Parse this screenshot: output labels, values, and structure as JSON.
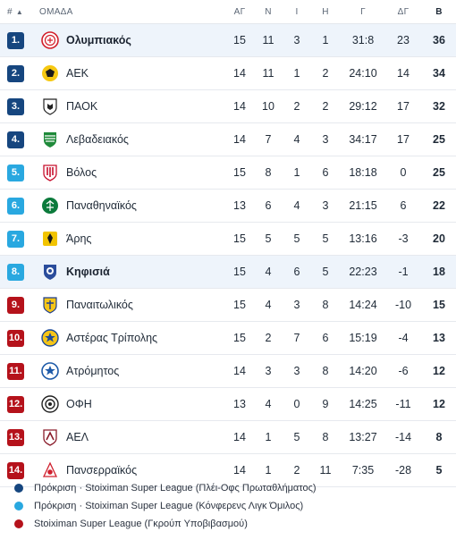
{
  "header": {
    "pos": "#",
    "team": "ΟΜΑΔΑ",
    "played": "ΑΓ",
    "wins": "Ν",
    "draws": "Ι",
    "losses": "Η",
    "goals": "Γ",
    "goal_diff": "ΔΓ",
    "points": "Β",
    "sort_icon": "sort-up-icon"
  },
  "colors": {
    "playoff": "#16467f",
    "conference": "#29a8e0",
    "relegation": "#b5121b",
    "highlight_row": "#eef4fb"
  },
  "rows": [
    {
      "pos": "1.",
      "team": "Ολυμπιακός",
      "played": "15",
      "wins": "11",
      "draws": "3",
      "losses": "1",
      "goals": "31:8",
      "gd": "23",
      "pts": "36",
      "zone": "playoff",
      "bold": true,
      "logo": "olympiakos-logo"
    },
    {
      "pos": "2.",
      "team": "ΑΕΚ",
      "played": "14",
      "wins": "11",
      "draws": "1",
      "losses": "2",
      "goals": "24:10",
      "gd": "14",
      "pts": "34",
      "zone": "playoff",
      "bold": false,
      "logo": "aek-logo"
    },
    {
      "pos": "3.",
      "team": "ΠΑΟΚ",
      "played": "14",
      "wins": "10",
      "draws": "2",
      "losses": "2",
      "goals": "29:12",
      "gd": "17",
      "pts": "32",
      "zone": "playoff",
      "bold": false,
      "logo": "paok-logo"
    },
    {
      "pos": "4.",
      "team": "Λεβαδειακός",
      "played": "14",
      "wins": "7",
      "draws": "4",
      "losses": "3",
      "goals": "34:17",
      "gd": "17",
      "pts": "25",
      "zone": "playoff",
      "bold": false,
      "logo": "levadiakos-logo"
    },
    {
      "pos": "5.",
      "team": "Βόλος",
      "played": "15",
      "wins": "8",
      "draws": "1",
      "losses": "6",
      "goals": "18:18",
      "gd": "0",
      "pts": "25",
      "zone": "conference",
      "bold": false,
      "logo": "volos-logo"
    },
    {
      "pos": "6.",
      "team": "Παναθηναϊκός",
      "played": "13",
      "wins": "6",
      "draws": "4",
      "losses": "3",
      "goals": "21:15",
      "gd": "6",
      "pts": "22",
      "zone": "conference",
      "bold": false,
      "logo": "panathinaikos-logo"
    },
    {
      "pos": "7.",
      "team": "Άρης",
      "played": "15",
      "wins": "5",
      "draws": "5",
      "losses": "5",
      "goals": "13:16",
      "gd": "-3",
      "pts": "20",
      "zone": "conference",
      "bold": false,
      "logo": "aris-logo"
    },
    {
      "pos": "8.",
      "team": "Κηφισιά",
      "played": "15",
      "wins": "4",
      "draws": "6",
      "losses": "5",
      "goals": "22:23",
      "gd": "-1",
      "pts": "18",
      "zone": "conference",
      "bold": true,
      "logo": "kifisia-logo"
    },
    {
      "pos": "9.",
      "team": "Παναιτωλικός",
      "played": "15",
      "wins": "4",
      "draws": "3",
      "losses": "8",
      "goals": "14:24",
      "gd": "-10",
      "pts": "15",
      "zone": "relegation",
      "bold": false,
      "logo": "panaitolikos-logo"
    },
    {
      "pos": "10.",
      "team": "Αστέρας Τρίπολης",
      "played": "15",
      "wins": "2",
      "draws": "7",
      "losses": "6",
      "goals": "15:19",
      "gd": "-4",
      "pts": "13",
      "zone": "relegation",
      "bold": false,
      "logo": "asteras-logo"
    },
    {
      "pos": "11.",
      "team": "Ατρόμητος",
      "played": "14",
      "wins": "3",
      "draws": "3",
      "losses": "8",
      "goals": "14:20",
      "gd": "-6",
      "pts": "12",
      "zone": "relegation",
      "bold": false,
      "logo": "atromitos-logo"
    },
    {
      "pos": "12.",
      "team": "ΟΦΗ",
      "played": "13",
      "wins": "4",
      "draws": "0",
      "losses": "9",
      "goals": "14:25",
      "gd": "-11",
      "pts": "12",
      "zone": "relegation",
      "bold": false,
      "logo": "ofi-logo"
    },
    {
      "pos": "13.",
      "team": "ΑΕΛ",
      "played": "14",
      "wins": "1",
      "draws": "5",
      "losses": "8",
      "goals": "13:27",
      "gd": "-14",
      "pts": "8",
      "zone": "relegation",
      "bold": false,
      "logo": "ael-logo"
    },
    {
      "pos": "14.",
      "team": "Πανσερραϊκός",
      "played": "14",
      "wins": "1",
      "draws": "2",
      "losses": "11",
      "goals": "7:35",
      "gd": "-28",
      "pts": "5",
      "zone": "relegation",
      "bold": false,
      "logo": "panserraikos-logo"
    }
  ],
  "legend": [
    {
      "zone": "playoff",
      "label": "Πρόκριση · Stoiximan Super League (Πλέι-Οφς Πρωταθλήματος)"
    },
    {
      "zone": "conference",
      "label": "Πρόκριση · Stoiximan Super League (Κόνφερενς Λιγκ Όμιλος)"
    },
    {
      "zone": "relegation",
      "label": "Stoiximan Super League (Γκρούπ Υποβιβασμού)"
    }
  ]
}
